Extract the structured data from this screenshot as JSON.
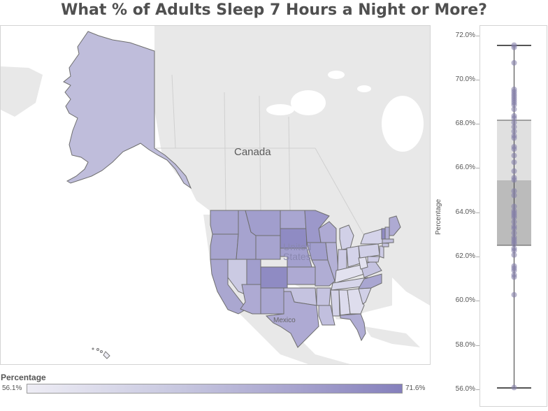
{
  "title": "What % of Adults Sleep 7 Hours a Night or More?",
  "map": {
    "labels": {
      "canada": "Canada",
      "united_states_line1": "United",
      "united_states_line2": "States",
      "mexico": "Mexico"
    },
    "colors": {
      "land": "#e8e8e8",
      "water": "#ffffff",
      "state_border": "#6e6e6e",
      "low": "#eeedf5",
      "high": "#8580bc"
    }
  },
  "legend": {
    "title": "Percentage",
    "min_label": "56.1%",
    "max_label": "71.6%"
  },
  "boxplot": {
    "axis_title": "Percentage",
    "ticks": [
      "72.0%",
      "70.0%",
      "68.0%",
      "66.0%",
      "64.0%",
      "62.0%",
      "60.0%",
      "58.0%",
      "56.0%"
    ]
  },
  "chart_data": [
    {
      "type": "heatmap",
      "subtype": "choropleth",
      "title": "What % of Adults Sleep 7 Hours a Night or More?",
      "region": "United States (states incl. Alaska, Hawaii)",
      "legend": {
        "title": "Percentage",
        "min": 56.1,
        "max": 71.6,
        "color_low": "#eeedf5",
        "color_high": "#8580bc"
      },
      "notes": "Darker purple in Great Plains/Mountain West (e.g., South Dakota, Colorado, Minnesota, Vermont); lightest in Southeast/Appalachia (e.g., Kentucky, Tennessee, Alabama, Georgia) and Hawaii."
    },
    {
      "type": "scatter",
      "subtype": "boxplot",
      "ylabel": "Percentage",
      "ylim": [
        56.0,
        72.0
      ],
      "yticks": [
        56.0,
        58.0,
        60.0,
        62.0,
        64.0,
        66.0,
        68.0,
        70.0,
        72.0
      ],
      "box": {
        "whisker_low": 56.1,
        "q1": 62.6,
        "median": 65.5,
        "q3": 68.2,
        "whisker_high": 71.6
      },
      "points": [
        71.6,
        71.5,
        70.8,
        69.6,
        69.5,
        69.4,
        69.3,
        69.2,
        69.1,
        69.0,
        68.9,
        68.7,
        68.4,
        68.3,
        68.1,
        67.9,
        67.7,
        67.5,
        67.4,
        67.0,
        66.9,
        66.6,
        66.3,
        65.9,
        65.6,
        65.5,
        65.0,
        64.8,
        64.3,
        64.1,
        64.0,
        63.9,
        63.8,
        63.6,
        63.4,
        63.3,
        63.1,
        62.9,
        62.8,
        62.7,
        62.6,
        62.4,
        62.3,
        62.1,
        61.6,
        61.5,
        61.4,
        61.2,
        61.1,
        60.3,
        56.1
      ],
      "point_color": "#8580aa"
    }
  ]
}
